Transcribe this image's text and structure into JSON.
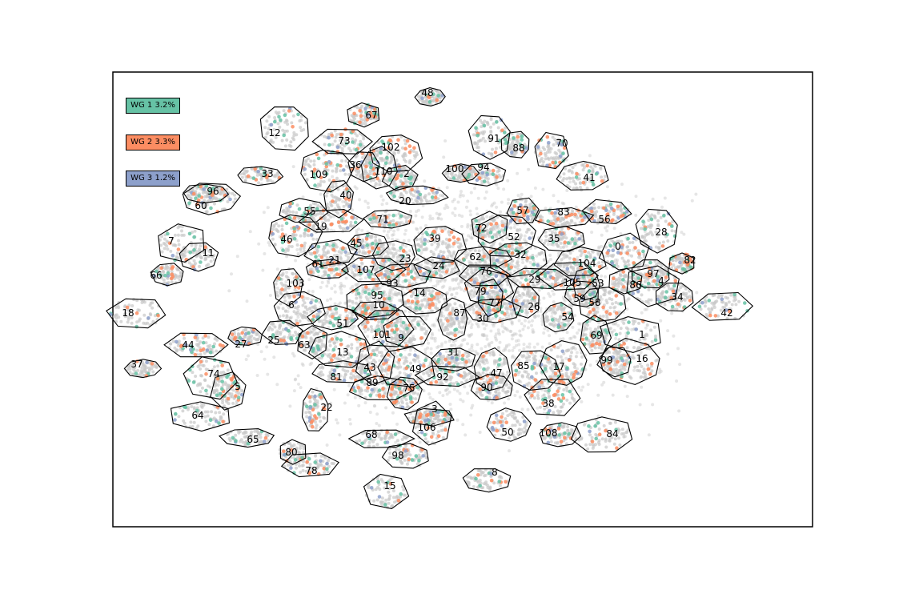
{
  "chart_data": {
    "type": "scatter",
    "title": "",
    "xlabel": "",
    "ylabel": "",
    "axes_ticks": false,
    "grid": false,
    "legend_placement": "top-left",
    "background_points_color": "#c8c8c8",
    "series": [
      {
        "name": "WG 1 3.2%",
        "color": "#66c2a5"
      },
      {
        "name": "WG 2 3.3%",
        "color": "#fc8d62"
      },
      {
        "name": "WG 3 1.2%",
        "color": "#8da0cb"
      }
    ],
    "cluster_outline_color": "#000000",
    "clusters": [
      {
        "id": "0",
        "x": 772,
        "y": 308
      },
      {
        "id": "1",
        "x": 802,
        "y": 418
      },
      {
        "id": "2",
        "x": 508,
        "y": 217
      },
      {
        "id": "3",
        "x": 543,
        "y": 511
      },
      {
        "id": "4",
        "x": 826,
        "y": 351
      },
      {
        "id": "5",
        "x": 297,
        "y": 483
      },
      {
        "id": "6",
        "x": 364,
        "y": 381
      },
      {
        "id": "7",
        "x": 214,
        "y": 301
      },
      {
        "id": "8",
        "x": 618,
        "y": 590
      },
      {
        "id": "9",
        "x": 501,
        "y": 422
      },
      {
        "id": "10",
        "x": 473,
        "y": 381
      },
      {
        "id": "11",
        "x": 260,
        "y": 316
      },
      {
        "id": "12",
        "x": 343,
        "y": 166
      },
      {
        "id": "13",
        "x": 428,
        "y": 440
      },
      {
        "id": "14",
        "x": 524,
        "y": 366
      },
      {
        "id": "15",
        "x": 487,
        "y": 607
      },
      {
        "id": "16",
        "x": 802,
        "y": 448
      },
      {
        "id": "17",
        "x": 698,
        "y": 458
      },
      {
        "id": "18",
        "x": 160,
        "y": 391
      },
      {
        "id": "19",
        "x": 401,
        "y": 283
      },
      {
        "id": "20",
        "x": 506,
        "y": 251
      },
      {
        "id": "21",
        "x": 418,
        "y": 325
      },
      {
        "id": "22",
        "x": 408,
        "y": 509
      },
      {
        "id": "23",
        "x": 506,
        "y": 323
      },
      {
        "id": "24",
        "x": 548,
        "y": 332
      },
      {
        "id": "25",
        "x": 342,
        "y": 425
      },
      {
        "id": "26",
        "x": 667,
        "y": 383
      },
      {
        "id": "27",
        "x": 301,
        "y": 430
      },
      {
        "id": "28",
        "x": 826,
        "y": 290
      },
      {
        "id": "29",
        "x": 668,
        "y": 349
      },
      {
        "id": "30",
        "x": 603,
        "y": 398
      },
      {
        "id": "31",
        "x": 566,
        "y": 440
      },
      {
        "id": "32",
        "x": 650,
        "y": 318
      },
      {
        "id": "33",
        "x": 334,
        "y": 217
      },
      {
        "id": "34",
        "x": 846,
        "y": 371
      },
      {
        "id": "35",
        "x": 692,
        "y": 298
      },
      {
        "id": "36",
        "x": 444,
        "y": 206
      },
      {
        "id": "37",
        "x": 171,
        "y": 455
      },
      {
        "id": "38",
        "x": 685,
        "y": 504
      },
      {
        "id": "39",
        "x": 543,
        "y": 298
      },
      {
        "id": "40",
        "x": 432,
        "y": 244
      },
      {
        "id": "41",
        "x": 736,
        "y": 222
      },
      {
        "id": "42",
        "x": 908,
        "y": 391
      },
      {
        "id": "43",
        "x": 462,
        "y": 459
      },
      {
        "id": "44",
        "x": 235,
        "y": 431
      },
      {
        "id": "45",
        "x": 445,
        "y": 304
      },
      {
        "id": "46",
        "x": 358,
        "y": 299
      },
      {
        "id": "47",
        "x": 620,
        "y": 466
      },
      {
        "id": "48",
        "x": 534,
        "y": 116
      },
      {
        "id": "49",
        "x": 519,
        "y": 461
      },
      {
        "id": "50",
        "x": 634,
        "y": 540
      },
      {
        "id": "51",
        "x": 428,
        "y": 404
      },
      {
        "id": "52",
        "x": 642,
        "y": 296
      },
      {
        "id": "53",
        "x": 747,
        "y": 354
      },
      {
        "id": "54",
        "x": 709,
        "y": 396
      },
      {
        "id": "55",
        "x": 387,
        "y": 264
      },
      {
        "id": "56",
        "x": 755,
        "y": 274
      },
      {
        "id": "57",
        "x": 653,
        "y": 263
      },
      {
        "id": "58",
        "x": 743,
        "y": 378
      },
      {
        "id": "59",
        "x": 724,
        "y": 373
      },
      {
        "id": "60",
        "x": 251,
        "y": 257
      },
      {
        "id": "61",
        "x": 397,
        "y": 330
      },
      {
        "id": "62",
        "x": 594,
        "y": 321
      },
      {
        "id": "63",
        "x": 380,
        "y": 431
      },
      {
        "id": "64",
        "x": 247,
        "y": 519
      },
      {
        "id": "65",
        "x": 316,
        "y": 549
      },
      {
        "id": "66",
        "x": 195,
        "y": 344
      },
      {
        "id": "67",
        "x": 464,
        "y": 144
      },
      {
        "id": "68",
        "x": 464,
        "y": 543
      },
      {
        "id": "69",
        "x": 745,
        "y": 419
      },
      {
        "id": "70",
        "x": 702,
        "y": 179
      },
      {
        "id": "71",
        "x": 478,
        "y": 274
      },
      {
        "id": "72",
        "x": 601,
        "y": 285
      },
      {
        "id": "73",
        "x": 430,
        "y": 176
      },
      {
        "id": "74",
        "x": 267,
        "y": 467
      },
      {
        "id": "75",
        "x": 511,
        "y": 485
      },
      {
        "id": "76",
        "x": 607,
        "y": 339
      },
      {
        "id": "77",
        "x": 618,
        "y": 378
      },
      {
        "id": "78",
        "x": 389,
        "y": 588
      },
      {
        "id": "79",
        "x": 600,
        "y": 364
      },
      {
        "id": "80",
        "x": 364,
        "y": 565
      },
      {
        "id": "81",
        "x": 420,
        "y": 471
      },
      {
        "id": "82",
        "x": 862,
        "y": 325
      },
      {
        "id": "83",
        "x": 704,
        "y": 265
      },
      {
        "id": "84",
        "x": 765,
        "y": 542
      },
      {
        "id": "85",
        "x": 654,
        "y": 457
      },
      {
        "id": "86",
        "x": 794,
        "y": 356
      },
      {
        "id": "87",
        "x": 574,
        "y": 391
      },
      {
        "id": "88",
        "x": 648,
        "y": 185
      },
      {
        "id": "89",
        "x": 465,
        "y": 478
      },
      {
        "id": "90",
        "x": 608,
        "y": 484
      },
      {
        "id": "91",
        "x": 617,
        "y": 173
      },
      {
        "id": "92",
        "x": 553,
        "y": 471
      },
      {
        "id": "93",
        "x": 490,
        "y": 354
      },
      {
        "id": "94",
        "x": 604,
        "y": 209
      },
      {
        "id": "95",
        "x": 471,
        "y": 369
      },
      {
        "id": "96",
        "x": 266,
        "y": 239
      },
      {
        "id": "97",
        "x": 816,
        "y": 342
      },
      {
        "id": "98",
        "x": 497,
        "y": 569
      },
      {
        "id": "99",
        "x": 758,
        "y": 450
      },
      {
        "id": "100",
        "x": 568,
        "y": 211
      },
      {
        "id": "101",
        "x": 477,
        "y": 418
      },
      {
        "id": "102",
        "x": 488,
        "y": 184
      },
      {
        "id": "103",
        "x": 369,
        "y": 354
      },
      {
        "id": "104",
        "x": 733,
        "y": 329
      },
      {
        "id": "105",
        "x": 715,
        "y": 353
      },
      {
        "id": "106",
        "x": 533,
        "y": 534
      },
      {
        "id": "107",
        "x": 457,
        "y": 337
      },
      {
        "id": "108",
        "x": 685,
        "y": 541
      },
      {
        "id": "109",
        "x": 398,
        "y": 218
      },
      {
        "id": "110",
        "x": 479,
        "y": 214
      }
    ]
  }
}
